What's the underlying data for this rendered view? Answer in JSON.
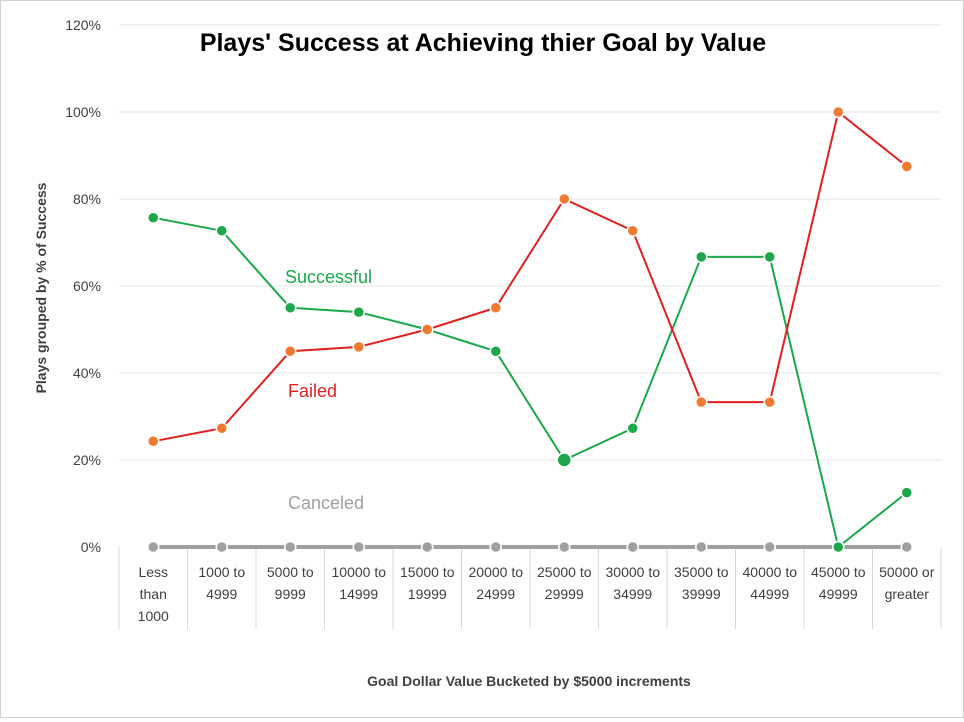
{
  "chart_data": {
    "type": "line",
    "title": "Plays' Success at Achieving thier Goal by Value",
    "xlabel": "Goal Dollar Value Bucketed by $5000 increments",
    "ylabel": "Plays grouped by % of Success",
    "ylim": [
      0,
      1.2
    ],
    "yticks": [
      "0%",
      "20%",
      "40%",
      "60%",
      "80%",
      "100%",
      "120%"
    ],
    "grid": true,
    "categories": [
      [
        "Less",
        "than",
        "1000"
      ],
      [
        "1000 to",
        "4999"
      ],
      [
        "5000 to",
        "9999"
      ],
      [
        "10000 to",
        "14999"
      ],
      [
        "15000 to",
        "19999"
      ],
      [
        "20000 to",
        "24999"
      ],
      [
        "25000 to",
        "29999"
      ],
      [
        "30000 to",
        "34999"
      ],
      [
        "35000 to",
        "39999"
      ],
      [
        "40000 to",
        "44999"
      ],
      [
        "45000 to",
        "49999"
      ],
      [
        "50000 or",
        "greater"
      ]
    ],
    "series": [
      {
        "name": "Successful",
        "color": "#1aa84a",
        "marker": "#1aa84a",
        "values": [
          0.757,
          0.727,
          0.55,
          0.54,
          0.5,
          0.45,
          0.2,
          0.273,
          0.667,
          0.667,
          0.0,
          0.125
        ]
      },
      {
        "name": "Failed",
        "color": "#e0201e",
        "marker": "#f07a30",
        "values": [
          0.243,
          0.273,
          0.45,
          0.46,
          0.5,
          0.55,
          0.8,
          0.727,
          0.333,
          0.333,
          1.0,
          0.875
        ]
      },
      {
        "name": "Canceled",
        "color": "#a0a0a0",
        "marker": "#a0a0a0",
        "values": [
          0,
          0,
          0,
          0,
          0,
          0,
          0,
          0,
          0,
          0,
          0,
          0
        ]
      }
    ],
    "annotations": [
      {
        "text": "Successful",
        "color": "#1aa84a"
      },
      {
        "text": "Failed",
        "color": "#e0201e"
      },
      {
        "text": "Canceled",
        "color": "#a0a0a0"
      }
    ]
  }
}
